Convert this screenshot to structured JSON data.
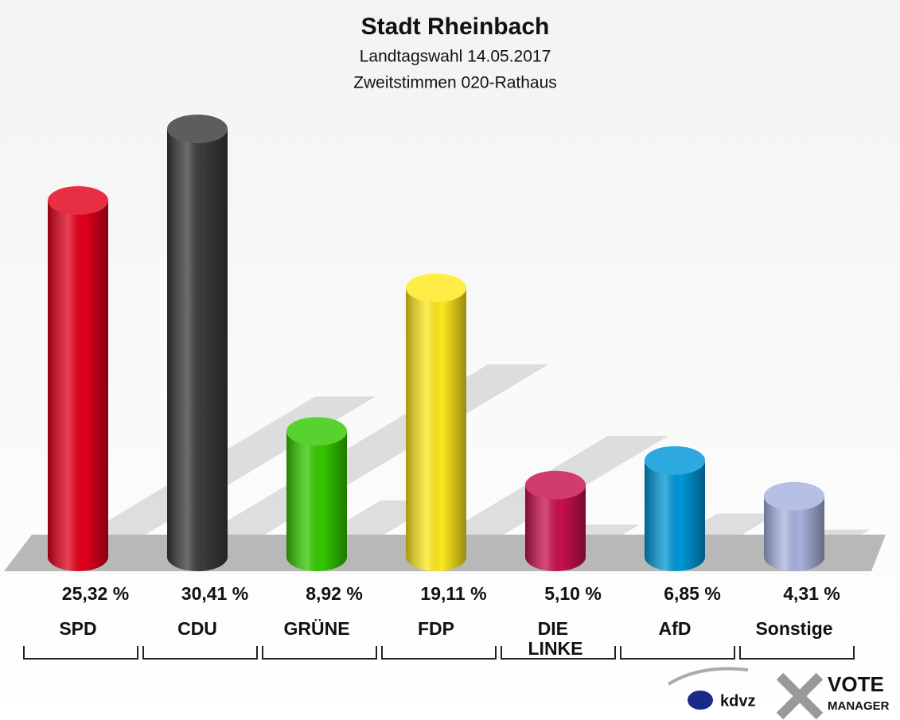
{
  "chart_data": {
    "type": "bar",
    "title": "Stadt Rheinbach",
    "subtitle": "Landtagswahl 14.05.2017",
    "subtitle2": "Zweitstimmen 020-Rathaus",
    "categories": [
      "SPD",
      "CDU",
      "GRÜNE",
      "FDP",
      "DIE LINKE",
      "AfD",
      "Sonstige"
    ],
    "values": [
      25.32,
      30.41,
      8.92,
      19.11,
      5.1,
      6.85,
      4.31
    ],
    "value_labels": [
      "25,32 %",
      "30,41 %",
      "8,92 %",
      "19,11 %",
      "5,10 %",
      "6,85 %",
      "4,31 %"
    ],
    "colors": [
      "#e2001a",
      "#3a3a3a",
      "#33c800",
      "#ffe81e",
      "#c8104e",
      "#0097d8",
      "#a7b3de"
    ]
  },
  "logo": {
    "kdvz": "kdvz",
    "vote": "VOTE",
    "manager": "MANAGER"
  }
}
